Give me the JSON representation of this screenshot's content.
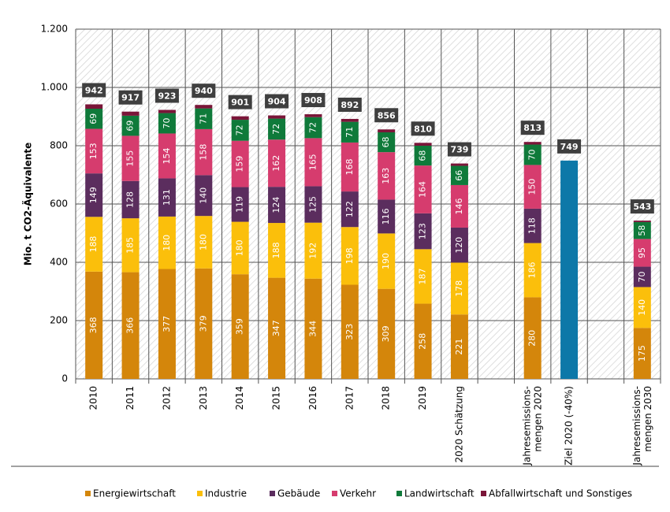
{
  "chart_data": {
    "type": "stacked_bar",
    "ylabel": "Mio. t CO2-Äquivalente",
    "categories": [
      "2010",
      "2011",
      "2012",
      "2013",
      "2014",
      "2015",
      "2016",
      "2017",
      "2018",
      "2019",
      "2020 Schätzung",
      null,
      "Jahresemissions-mengen 2020",
      "Ziel 2020 (-40%)",
      null,
      "Jahresemissions-mengen 2030"
    ],
    "series": [
      {
        "name": "Energiewirtschaft",
        "color": "#d4860b",
        "values": [
          368,
          366,
          377,
          379,
          359,
          347,
          344,
          323,
          309,
          258,
          221,
          null,
          280,
          null,
          null,
          175
        ]
      },
      {
        "name": "Industrie",
        "color": "#fbbf0b",
        "values": [
          188,
          185,
          180,
          180,
          180,
          188,
          192,
          198,
          190,
          187,
          178,
          null,
          186,
          null,
          null,
          140
        ]
      },
      {
        "name": "Gebäude",
        "color": "#5b2d5e",
        "values": [
          149,
          128,
          131,
          140,
          119,
          124,
          125,
          122,
          116,
          123,
          120,
          null,
          118,
          null,
          null,
          70
        ]
      },
      {
        "name": "Verkehr",
        "color": "#d63c6e",
        "values": [
          153,
          155,
          154,
          158,
          159,
          162,
          165,
          168,
          163,
          164,
          146,
          null,
          150,
          null,
          null,
          95
        ]
      },
      {
        "name": "Landwirtschaft",
        "color": "#0f7a3a",
        "values": [
          69,
          69,
          70,
          71,
          72,
          72,
          72,
          71,
          68,
          68,
          66,
          null,
          70,
          null,
          null,
          58
        ]
      },
      {
        "name": "Abfallwirtschaft und Sonstiges",
        "color": "#7a1538",
        "values": [
          15,
          14,
          11,
          12,
          12,
          11,
          10,
          10,
          10,
          10,
          8,
          null,
          9,
          null,
          null,
          5
        ]
      },
      {
        "color": "#0d78a8",
        "values": [
          null,
          null,
          null,
          null,
          null,
          null,
          null,
          null,
          null,
          null,
          null,
          null,
          null,
          749,
          null,
          null
        ]
      }
    ],
    "totals": [
      942,
      917,
      923,
      940,
      901,
      904,
      908,
      892,
      856,
      810,
      739,
      null,
      813,
      749,
      null,
      543
    ],
    "ylim": [
      0,
      1200
    ],
    "yticks": [
      0,
      200,
      400,
      600,
      800,
      {
        "value": 1000,
        "label": "1.000"
      },
      {
        "value": 1200,
        "label": "1.200"
      }
    ],
    "grid": true,
    "legend": "bottom"
  }
}
